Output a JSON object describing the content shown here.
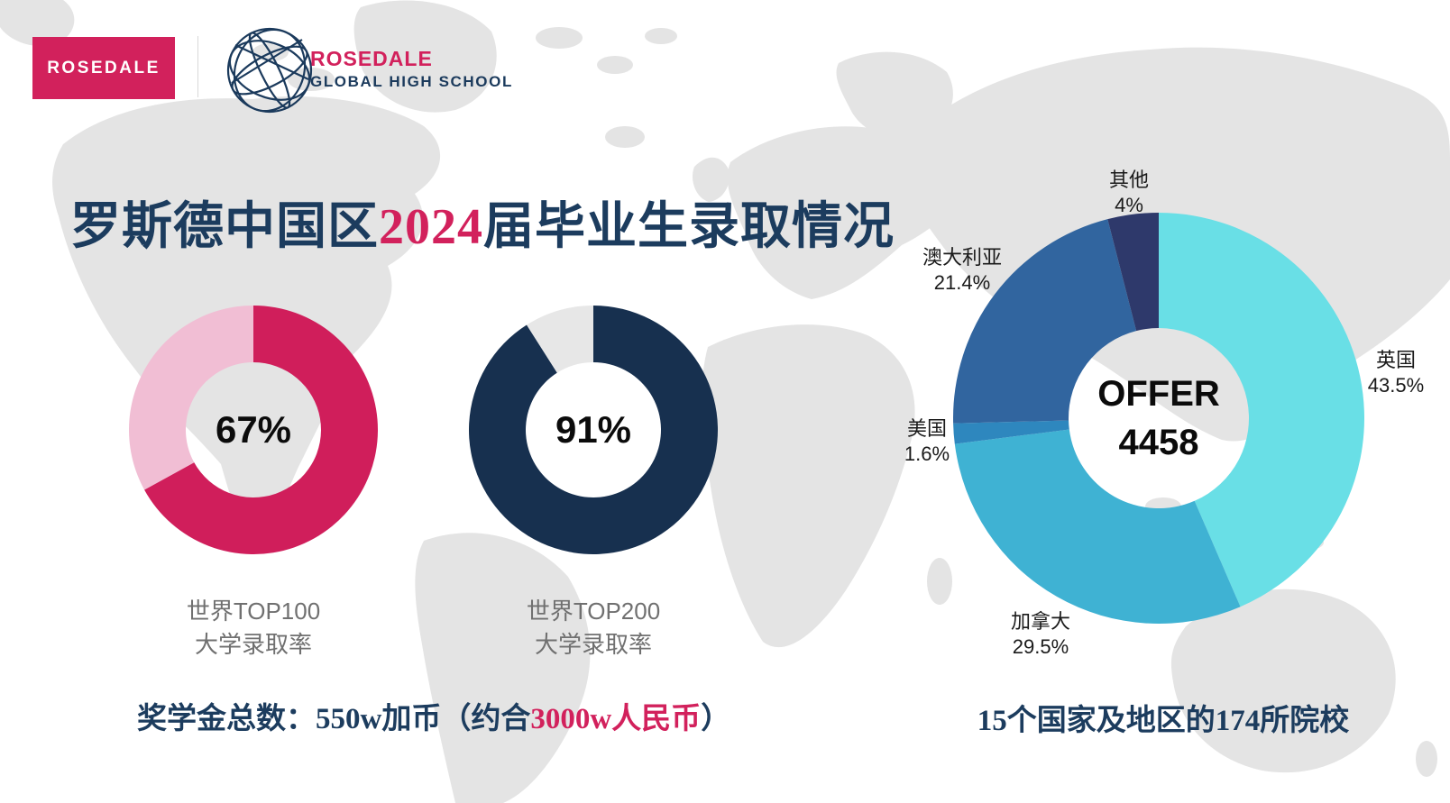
{
  "brand": {
    "box_label": "ROSEDALE",
    "name": "ROSEDALE",
    "subtitle": "GLOBAL HIGH SCHOOL",
    "pink": "#D2215C",
    "navy": "#1B3A5C"
  },
  "title": {
    "part1": "罗斯德中国区",
    "highlight": "2024",
    "part2": "届毕业生录取情况"
  },
  "chart_data": [
    {
      "type": "pie",
      "variant": "donut",
      "title": "世界TOP100大学录取率",
      "center_label": "67%",
      "caption_lines": [
        "世界TOP100",
        "大学录取率"
      ],
      "segments": [
        {
          "label": "admitted",
          "value": 67,
          "color": "#D01E5B"
        },
        {
          "label": "remainder",
          "value": 33,
          "color": "#F1BED4"
        }
      ],
      "start_angle_deg": 0
    },
    {
      "type": "pie",
      "variant": "donut",
      "title": "世界TOP200大学录取率",
      "center_label": "91%",
      "caption_lines": [
        "世界TOP200",
        "大学录取率"
      ],
      "segments": [
        {
          "label": "admitted",
          "value": 91,
          "color": "#17304F"
        },
        {
          "label": "remainder",
          "value": 9,
          "color": "#E7E7E7"
        }
      ],
      "start_angle_deg": 0
    },
    {
      "type": "pie",
      "variant": "donut",
      "title": "OFFER 4458",
      "center_label_lines": [
        "OFFER",
        "4458"
      ],
      "segments": [
        {
          "label": "英国",
          "value": 43.5,
          "display": "43.5%",
          "color": "#69DFE6"
        },
        {
          "label": "加拿大",
          "value": 29.5,
          "display": "29.5%",
          "color": "#3FB2D3"
        },
        {
          "label": "美国",
          "value": 1.6,
          "display": "1.6%",
          "color": "#2E87BE"
        },
        {
          "label": "澳大利亚",
          "value": 21.4,
          "display": "21.4%",
          "color": "#31659F"
        },
        {
          "label": "其他",
          "value": 4,
          "display": "4%",
          "color": "#2E396B"
        }
      ],
      "start_angle_deg": 0,
      "legend_position": "around"
    }
  ],
  "footer": {
    "scholarship_prefix": "奖学金总数：550w加币（约合",
    "scholarship_highlight": "3000w人民币",
    "scholarship_suffix": "）",
    "right_text": "15个国家及地区的174所院校"
  },
  "colors": {
    "map_land": "#E4E4E4",
    "background": "#FFFFFF",
    "title_navy": "#1C3C5E",
    "caption_gray": "#707070"
  }
}
